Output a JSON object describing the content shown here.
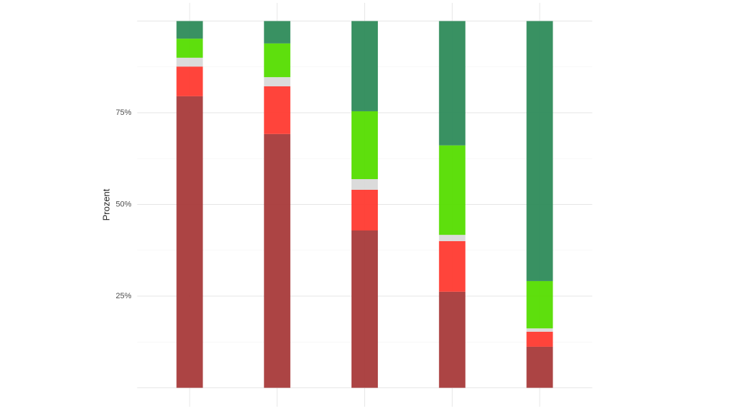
{
  "chart_data": {
    "type": "stacked_bar",
    "y_label": "Prozent",
    "categories": [
      null,
      null,
      null,
      null,
      null
    ],
    "series": [
      {
        "color": "#a83a3a",
        "values": [
          79.5,
          69.2,
          42.9,
          26.2,
          11.2
        ]
      },
      {
        "color": "#ff3a30",
        "values": [
          8.1,
          13.0,
          11.1,
          13.8,
          4.1
        ]
      },
      {
        "color": "#d9d9d9",
        "values": [
          2.4,
          2.5,
          2.9,
          1.7,
          0.9
        ]
      },
      {
        "color": "#55dd00",
        "values": [
          5.2,
          9.2,
          18.5,
          24.4,
          12.9
        ]
      },
      {
        "color": "#2e8b5a",
        "values": [
          4.8,
          6.1,
          24.6,
          33.9,
          70.9
        ]
      }
    ],
    "ylim": [
      0,
      100
    ],
    "yticks": [
      {
        "value": 25,
        "label": "25%"
      },
      {
        "value": 50,
        "label": "50%"
      },
      {
        "value": 75,
        "label": "75%"
      }
    ],
    "grid": true
  }
}
